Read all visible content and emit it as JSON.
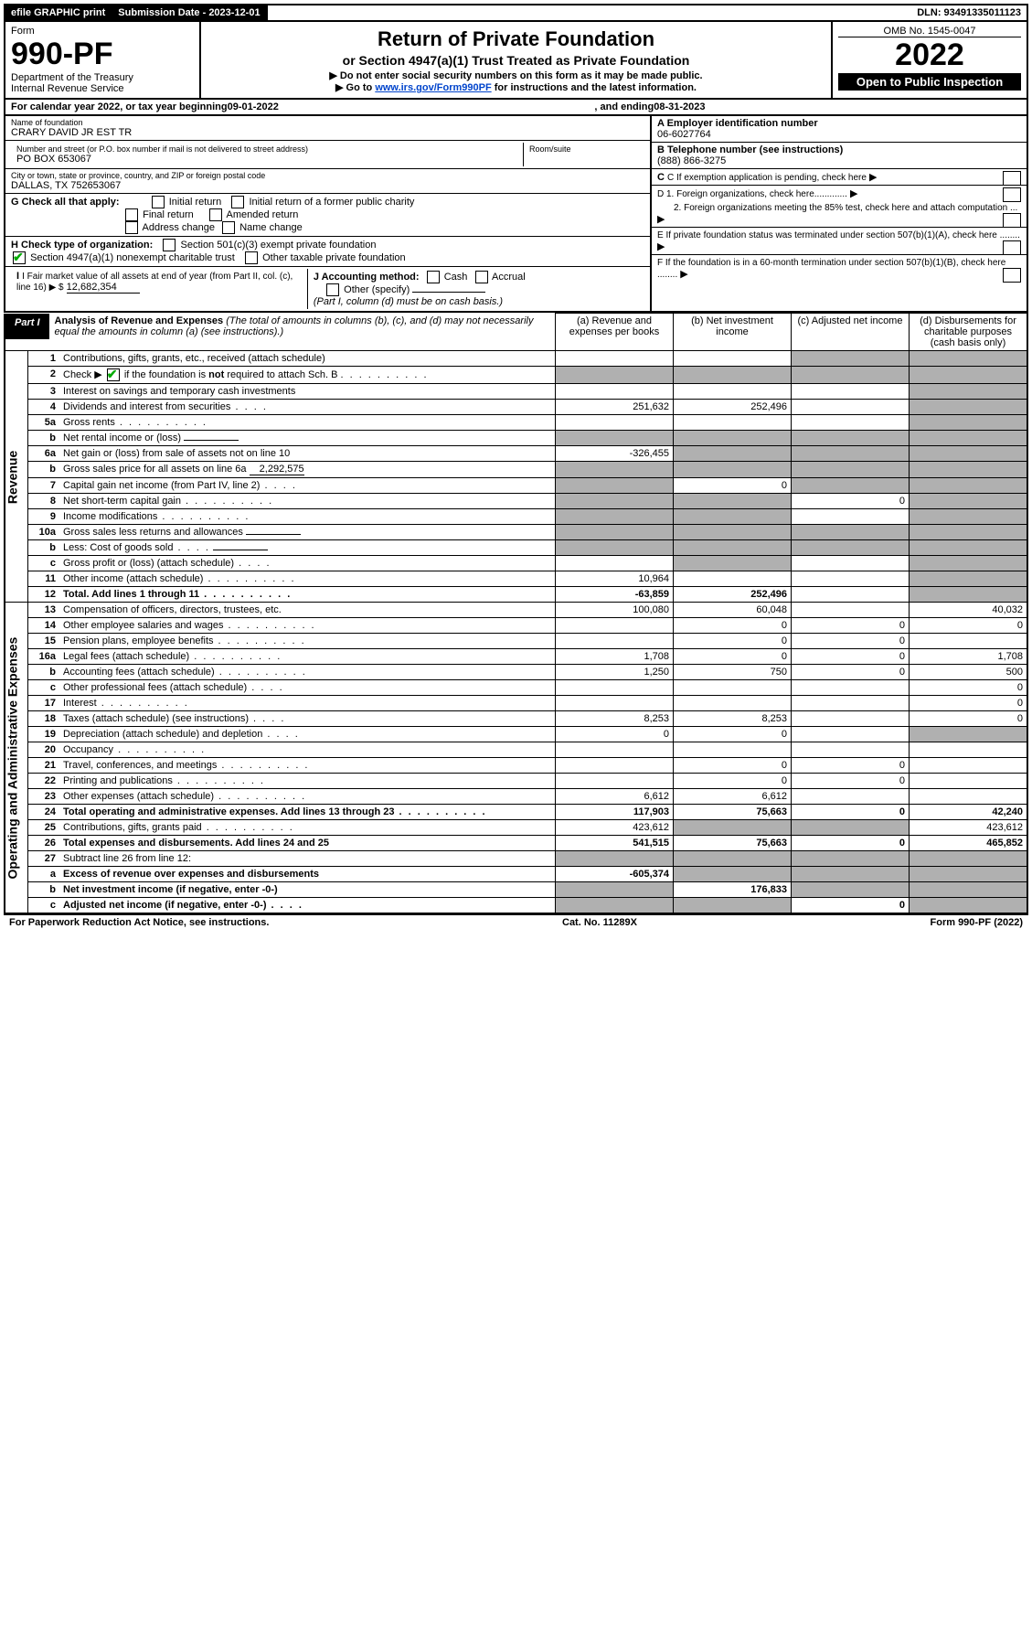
{
  "top": {
    "efile": "efile GRAPHIC print",
    "submission_label": "Submission Date - 2023-12-01",
    "dln": "DLN: 93491335011123"
  },
  "header": {
    "form_label": "Form",
    "form_number": "990-PF",
    "dept": "Department of the Treasury",
    "irs": "Internal Revenue Service",
    "title": "Return of Private Foundation",
    "subtitle": "or Section 4947(a)(1) Trust Treated as Private Foundation",
    "note1": "▶ Do not enter social security numbers on this form as it may be made public.",
    "note2_pre": "▶ Go to ",
    "note2_link": "www.irs.gov/Form990PF",
    "note2_post": " for instructions and the latest information.",
    "omb": "OMB No. 1545-0047",
    "year": "2022",
    "open_pub": "Open to Public Inspection"
  },
  "cal_year": {
    "pre": "For calendar year 2022, or tax year beginning ",
    "begin": "09-01-2022",
    "mid": ", and ending ",
    "end": "08-31-2023"
  },
  "info_left": {
    "name_label": "Name of foundation",
    "name": "CRARY DAVID JR EST TR",
    "addr_label": "Number and street (or P.O. box number if mail is not delivered to street address)",
    "addr": "PO BOX 653067",
    "room_label": "Room/suite",
    "city_label": "City or town, state or province, country, and ZIP or foreign postal code",
    "city": "DALLAS, TX  752653067",
    "g_label": "G Check all that apply:",
    "g_opts": [
      "Initial return",
      "Initial return of a former public charity",
      "Final return",
      "Amended return",
      "Address change",
      "Name change"
    ],
    "h_label": "H Check type of organization:",
    "h_opt1": "Section 501(c)(3) exempt private foundation",
    "h_opt2": "Section 4947(a)(1) nonexempt charitable trust",
    "h_opt3": "Other taxable private foundation",
    "i_label": "I Fair market value of all assets at end of year (from Part II, col. (c), line 16) ▶ $",
    "i_val": "12,682,354",
    "j_label": "J Accounting method:",
    "j_cash": "Cash",
    "j_accrual": "Accrual",
    "j_other": "Other (specify)",
    "j_note": "(Part I, column (d) must be on cash basis.)"
  },
  "info_right": {
    "a_label": "A Employer identification number",
    "a_val": "06-6027764",
    "b_label": "B Telephone number (see instructions)",
    "b_val": "(888) 866-3275",
    "c_label": "C If exemption application is pending, check here",
    "d1_label": "D 1. Foreign organizations, check here.............",
    "d2_label": "2. Foreign organizations meeting the 85% test, check here and attach computation ...",
    "e_label": "E If private foundation status was terminated under section 507(b)(1)(A), check here ........",
    "f_label": "F If the foundation is in a 60-month termination under section 507(b)(1)(B), check here ........"
  },
  "part1": {
    "tag": "Part I",
    "title": "Analysis of Revenue and Expenses",
    "note": " (The total of amounts in columns (b), (c), and (d) may not necessarily equal the amounts in column (a) (see instructions).)",
    "col_a": "(a) Revenue and expenses per books",
    "col_b": "(b) Net investment income",
    "col_c": "(c) Adjusted net income",
    "col_d": "(d) Disbursements for charitable purposes (cash basis only)"
  },
  "side_labels": {
    "revenue": "Revenue",
    "expenses": "Operating and Administrative Expenses"
  },
  "rows": [
    {
      "n": "1",
      "d": "Contributions, gifts, grants, etc., received (attach schedule)",
      "a": "",
      "b": "",
      "c": "shaded",
      "dd": "shaded"
    },
    {
      "n": "2",
      "d": "Check ▶ ☑ if the foundation is not required to attach Sch. B",
      "dotsShort": true,
      "a": "shaded",
      "b": "shaded",
      "c": "shaded",
      "dd": "shaded",
      "bold": false
    },
    {
      "n": "3",
      "d": "Interest on savings and temporary cash investments",
      "a": "",
      "b": "",
      "c": "",
      "dd": "shaded"
    },
    {
      "n": "4",
      "d": "Dividends and interest from securities",
      "dotsShort": true,
      "a": "251,632",
      "b": "252,496",
      "c": "",
      "dd": "shaded"
    },
    {
      "n": "5a",
      "d": "Gross rents",
      "dots": true,
      "a": "",
      "b": "",
      "c": "",
      "dd": "shaded"
    },
    {
      "n": "b",
      "d": "Net rental income or (loss)",
      "inline": "",
      "a": "shaded",
      "b": "shaded",
      "c": "shaded",
      "dd": "shaded"
    },
    {
      "n": "6a",
      "d": "Net gain or (loss) from sale of assets not on line 10",
      "a": "-326,455",
      "b": "shaded",
      "c": "shaded",
      "dd": "shaded"
    },
    {
      "n": "b",
      "d": "Gross sales price for all assets on line 6a",
      "inline": "2,292,575",
      "a": "shaded",
      "b": "shaded",
      "c": "shaded",
      "dd": "shaded"
    },
    {
      "n": "7",
      "d": "Capital gain net income (from Part IV, line 2)",
      "dotsShort": true,
      "a": "shaded",
      "b": "0",
      "c": "shaded",
      "dd": "shaded"
    },
    {
      "n": "8",
      "d": "Net short-term capital gain",
      "dots": true,
      "a": "shaded",
      "b": "shaded",
      "c": "0",
      "dd": "shaded"
    },
    {
      "n": "9",
      "d": "Income modifications",
      "dots": true,
      "a": "shaded",
      "b": "shaded",
      "c": "",
      "dd": "shaded"
    },
    {
      "n": "10a",
      "d": "Gross sales less returns and allowances",
      "inline": "",
      "a": "shaded",
      "b": "shaded",
      "c": "shaded",
      "dd": "shaded"
    },
    {
      "n": "b",
      "d": "Less: Cost of goods sold",
      "dotsShort": true,
      "inline": "",
      "a": "shaded",
      "b": "shaded",
      "c": "shaded",
      "dd": "shaded"
    },
    {
      "n": "c",
      "d": "Gross profit or (loss) (attach schedule)",
      "dotsShort": true,
      "a": "",
      "b": "shaded",
      "c": "",
      "dd": "shaded"
    },
    {
      "n": "11",
      "d": "Other income (attach schedule)",
      "dots": true,
      "a": "10,964",
      "b": "",
      "c": "",
      "dd": "shaded"
    },
    {
      "n": "12",
      "d": "Total. Add lines 1 through 11",
      "dots": true,
      "a": "-63,859",
      "b": "252,496",
      "c": "",
      "dd": "shaded",
      "bold": true
    },
    {
      "n": "13",
      "d": "Compensation of officers, directors, trustees, etc.",
      "a": "100,080",
      "b": "60,048",
      "c": "",
      "dd": "40,032"
    },
    {
      "n": "14",
      "d": "Other employee salaries and wages",
      "dots": true,
      "a": "",
      "b": "0",
      "c": "0",
      "dd": "0"
    },
    {
      "n": "15",
      "d": "Pension plans, employee benefits",
      "dots": true,
      "a": "",
      "b": "0",
      "c": "0",
      "dd": ""
    },
    {
      "n": "16a",
      "d": "Legal fees (attach schedule)",
      "dots": true,
      "a": "1,708",
      "b": "0",
      "c": "0",
      "dd": "1,708"
    },
    {
      "n": "b",
      "d": "Accounting fees (attach schedule)",
      "dots": true,
      "a": "1,250",
      "b": "750",
      "c": "0",
      "dd": "500"
    },
    {
      "n": "c",
      "d": "Other professional fees (attach schedule)",
      "dotsShort": true,
      "a": "",
      "b": "",
      "c": "",
      "dd": "0"
    },
    {
      "n": "17",
      "d": "Interest",
      "dots": true,
      "a": "",
      "b": "",
      "c": "",
      "dd": "0"
    },
    {
      "n": "18",
      "d": "Taxes (attach schedule) (see instructions)",
      "dotsShort": true,
      "a": "8,253",
      "b": "8,253",
      "c": "",
      "dd": "0"
    },
    {
      "n": "19",
      "d": "Depreciation (attach schedule) and depletion",
      "dotsShort": true,
      "a": "0",
      "b": "0",
      "c": "",
      "dd": "shaded"
    },
    {
      "n": "20",
      "d": "Occupancy",
      "dots": true,
      "a": "",
      "b": "",
      "c": "",
      "dd": ""
    },
    {
      "n": "21",
      "d": "Travel, conferences, and meetings",
      "dots": true,
      "a": "",
      "b": "0",
      "c": "0",
      "dd": ""
    },
    {
      "n": "22",
      "d": "Printing and publications",
      "dots": true,
      "a": "",
      "b": "0",
      "c": "0",
      "dd": ""
    },
    {
      "n": "23",
      "d": "Other expenses (attach schedule)",
      "dots": true,
      "a": "6,612",
      "b": "6,612",
      "c": "",
      "dd": ""
    },
    {
      "n": "24",
      "d": "Total operating and administrative expenses. Add lines 13 through 23",
      "dots": true,
      "a": "117,903",
      "b": "75,663",
      "c": "0",
      "dd": "42,240",
      "bold": true
    },
    {
      "n": "25",
      "d": "Contributions, gifts, grants paid",
      "dots": true,
      "a": "423,612",
      "b": "shaded",
      "c": "shaded",
      "dd": "423,612"
    },
    {
      "n": "26",
      "d": "Total expenses and disbursements. Add lines 24 and 25",
      "a": "541,515",
      "b": "75,663",
      "c": "0",
      "dd": "465,852",
      "bold": true
    },
    {
      "n": "27",
      "d": "Subtract line 26 from line 12:",
      "a": "shaded",
      "b": "shaded",
      "c": "shaded",
      "dd": "shaded"
    },
    {
      "n": "a",
      "d": "Excess of revenue over expenses and disbursements",
      "a": "-605,374",
      "b": "shaded",
      "c": "shaded",
      "dd": "shaded",
      "bold": true
    },
    {
      "n": "b",
      "d": "Net investment income (if negative, enter -0-)",
      "a": "shaded",
      "b": "176,833",
      "c": "shaded",
      "dd": "shaded",
      "bold": true
    },
    {
      "n": "c",
      "d": "Adjusted net income (if negative, enter -0-)",
      "dotsShort": true,
      "a": "shaded",
      "b": "shaded",
      "c": "0",
      "dd": "shaded",
      "bold": true
    }
  ],
  "footer": {
    "left": "For Paperwork Reduction Act Notice, see instructions.",
    "mid": "Cat. No. 11289X",
    "right": "Form 990-PF (2022)"
  },
  "colors": {
    "link": "#0044cc",
    "shaded": "#b0b0b0",
    "black": "#000000"
  }
}
